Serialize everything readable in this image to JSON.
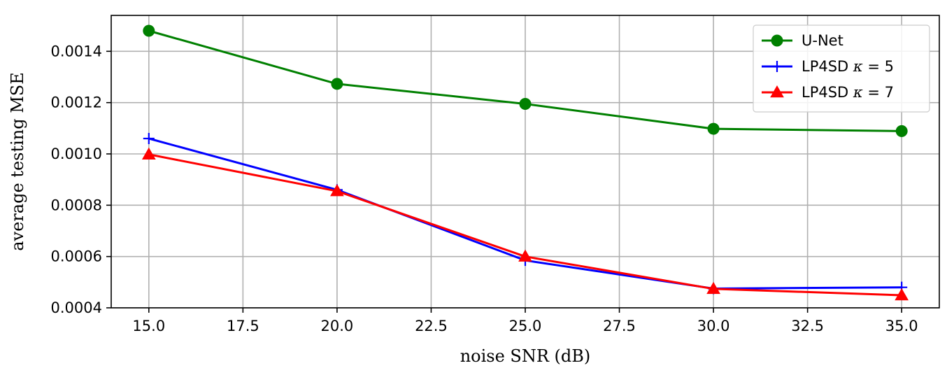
{
  "chart_data": {
    "type": "line",
    "xlabel": "noise SNR (dB)",
    "ylabel": "average testing MSE",
    "x": [
      15.0,
      20.0,
      25.0,
      30.0,
      35.0
    ],
    "xlim": [
      14.0,
      36.0
    ],
    "ylim": [
      0.0004,
      0.00154
    ],
    "xticks": [
      15.0,
      17.5,
      20.0,
      22.5,
      25.0,
      27.5,
      30.0,
      32.5,
      35.0
    ],
    "xtick_labels": [
      "15.0",
      "17.5",
      "20.0",
      "22.5",
      "25.0",
      "27.5",
      "30.0",
      "32.5",
      "35.0"
    ],
    "yticks": [
      0.0004,
      0.0006,
      0.0008,
      0.001,
      0.0012,
      0.0014
    ],
    "ytick_labels": [
      "0.0004",
      "0.0006",
      "0.0008",
      "0.0010",
      "0.0012",
      "0.0014"
    ],
    "grid": true,
    "legend_position": "top-right",
    "series": [
      {
        "name": "U-Net",
        "legend_prefix": "U-Net",
        "kappa": "",
        "color": "#008000",
        "marker": "circle",
        "values": [
          0.00148,
          0.001273,
          0.001195,
          0.001098,
          0.001089
        ]
      },
      {
        "name": "LP4SD κ = 5",
        "legend_prefix": "LP4SD ",
        "kappa": "5",
        "color": "#0000ff",
        "marker": "plus",
        "values": [
          0.00106,
          0.00086,
          0.000585,
          0.000475,
          0.00048
        ]
      },
      {
        "name": "LP4SD κ = 7",
        "legend_prefix": "LP4SD ",
        "kappa": "7",
        "color": "#ff0000",
        "marker": "triangle",
        "values": [
          0.000998,
          0.000855,
          0.0006,
          0.000474,
          0.000449
        ]
      }
    ]
  }
}
